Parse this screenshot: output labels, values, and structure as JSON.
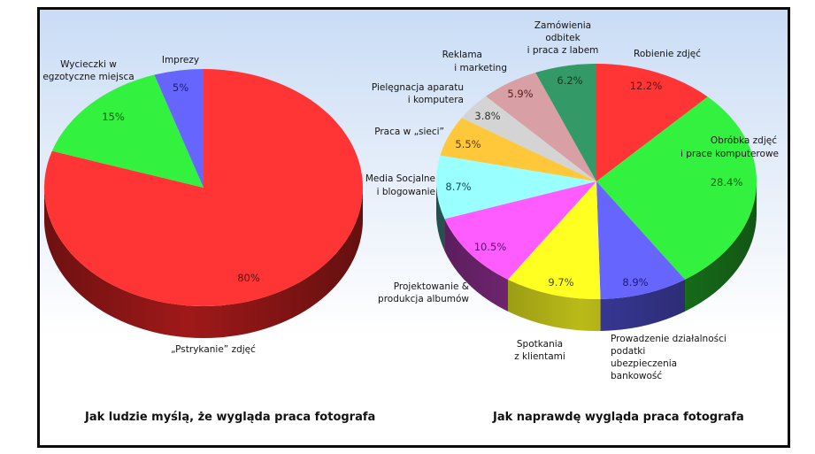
{
  "chart_data": [
    {
      "type": "pie",
      "style": "3d",
      "title": "Jak ludzie myślą, że wygląda praca fotografa",
      "start": "12 o'clock, clockwise",
      "categories": [
        "„Pstrykanie” zdjęć",
        "Wycieczki w egzotyczne miejsca",
        "Imprezy"
      ],
      "values": [
        80,
        15,
        5
      ],
      "value_labels": [
        "80%",
        "15%",
        "5%"
      ],
      "colors": [
        "#ff3535",
        "#33f23f",
        "#6666ff"
      ],
      "side_colors": [
        "#a81a1a",
        "#1e8f22",
        "#3a3aa0"
      ],
      "label_colors": [
        "#5a0f0f",
        "#0d5a10",
        "#1a1a7a"
      ]
    },
    {
      "type": "pie",
      "style": "3d",
      "title": "Jak naprawdę wygląda praca fotografa",
      "start": "12 o'clock, clockwise",
      "categories": [
        "Robienie zdjęć",
        "Obróbka zdjęć i prace komputerowe",
        "Prowadzenie działalności podatki ubezpieczenia bankowość",
        "Spotkania z klientami",
        "Projektowanie & produkcja albumów",
        "Media Socjalne i blogowanie",
        "Praca w „sieci”",
        "Pielęgnacja aparatu i komputera",
        "Reklama i marketing",
        "Zamówienia odbitek i praca z labem"
      ],
      "values": [
        12.2,
        28.4,
        8.9,
        9.7,
        10.5,
        8.7,
        5.5,
        3.8,
        5.9,
        6.2
      ],
      "value_labels": [
        "12.2%",
        "28.4%",
        "8.9%",
        "9.7%",
        "10.5%",
        "8.7%",
        "5.5%",
        "3.8%",
        "5.9%",
        "6.2%"
      ],
      "colors": [
        "#ff3535",
        "#33f23f",
        "#6666ff",
        "#ffff22",
        "#ff5cff",
        "#99ffff",
        "#ffc83a",
        "#d4d4d4",
        "#d8a0a4",
        "#339966"
      ],
      "side_colors": [
        "#a81a1a",
        "#1e8f22",
        "#3c3ca0",
        "#c4c41a",
        "#8a2d8a",
        "#3a7a7a",
        "#b08a20",
        "#8a8a8a",
        "#8a5a5e",
        "#1d5f3d"
      ],
      "label_colors": [
        "#5a0f0f",
        "#0d5a10",
        "#1a1a7a",
        "#4a4a00",
        "#5a0f6a",
        "#0f4a5a",
        "#5a3a00",
        "#333333",
        "#5a1a1a",
        "#0d3a1d"
      ]
    }
  ],
  "left_chart": {
    "title": "Jak ludzie myślą, że wygląda praca fotografa",
    "labels": {
      "pstrykanie": "„Pstrykanie” zdjęć",
      "wycieczki_1": "Wycieczki w",
      "wycieczki_2": "egzotyczne miejsca",
      "imprezy": "Imprezy"
    },
    "pcts": {
      "pstrykanie": "80%",
      "wycieczki": "15%",
      "imprezy": "5%"
    }
  },
  "right_chart": {
    "title": "Jak naprawdę wygląda praca fotografa",
    "labels": {
      "robienie": "Robienie zdjęć",
      "obrobka_1": "Obróbka zdjęć",
      "obrobka_2": "i prace komputerowe",
      "prowadzenie_1": "Prowadzenie działalności",
      "prowadzenie_2": "podatki",
      "prowadzenie_3": "ubezpieczenia",
      "prowadzenie_4": "bankowość",
      "spotkania_1": "Spotkania",
      "spotkania_2": "z klientami",
      "projektowanie_1": "Projektowanie &",
      "projektowanie_2": "produkcja albumów",
      "media_1": "Media Socjalne",
      "media_2": "i blogowanie",
      "siec": "Praca w „sieci”",
      "pielegnacja_1": "Pielęgnacja aparatu",
      "pielegnacja_2": "i komputera",
      "reklama_1": "Reklama",
      "reklama_2": "i marketing",
      "zamowienia_1": "Zamówienia",
      "zamowienia_2": "odbitek",
      "zamowienia_3": "i praca z labem"
    },
    "pcts": {
      "robienie": "12.2%",
      "obrobka": "28.4%",
      "prowadzenie": "8.9%",
      "spotkania": "9.7%",
      "projektowanie": "10.5%",
      "media": "8.7%",
      "siec": "5.5%",
      "pielegnacja": "3.8%",
      "reklama": "5.9%",
      "zamowienia": "6.2%"
    }
  }
}
